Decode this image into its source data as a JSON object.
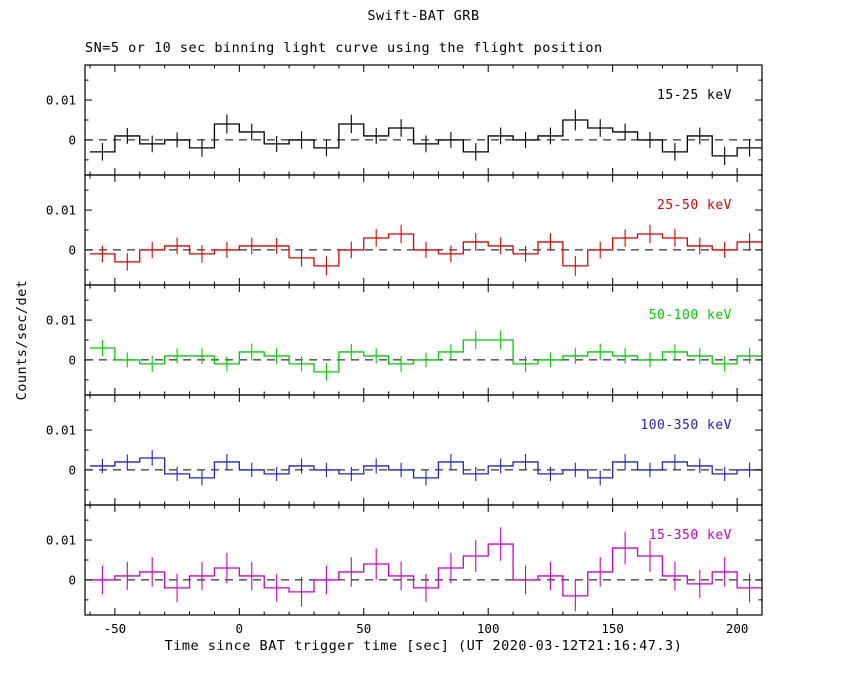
{
  "chart_data": {
    "type": "line",
    "style": "histogram-step light curve with vertical error bars per bin",
    "title": "Swift-BAT GRB",
    "subtitle": "SN=5 or 10 sec binning light curve using the flight position",
    "xlabel": "Time since BAT trigger time [sec] (UT 2020-03-12T21:16:47.3)",
    "ylabel": "Counts/sec/det",
    "binning_sec": "5 or 10",
    "xlim": [
      -62,
      210
    ],
    "ylim": [
      -0.0088,
      0.0188
    ],
    "x_major_ticks": [
      -50,
      0,
      50,
      100,
      150,
      200
    ],
    "x_minor_tick_step": 10,
    "y_major_ticks": [
      0,
      0.01
    ],
    "y_major_tick_labels": [
      "0",
      "0.01"
    ],
    "y_minor_ticks": [
      -0.005,
      0.005,
      0.015
    ],
    "zero_line": {
      "style": "dashed",
      "color": "#000000",
      "value": 0
    },
    "grid": false,
    "legend_position": "inside-top-right-per-panel",
    "bin_start": -60,
    "bin_width": 10,
    "x_bin_centers": [
      -55,
      -45,
      -35,
      -25,
      -15,
      -5,
      5,
      15,
      25,
      35,
      45,
      55,
      65,
      75,
      85,
      95,
      105,
      115,
      125,
      135,
      145,
      155,
      165,
      175,
      185,
      195,
      205
    ],
    "panels": [
      {
        "label": "15-25 keV",
        "color": "#000000",
        "values": [
          -0.003,
          0.001,
          -0.001,
          0.0,
          -0.002,
          0.004,
          0.002,
          -0.001,
          0.0,
          -0.002,
          0.004,
          0.001,
          0.003,
          -0.001,
          0.0,
          -0.003,
          0.001,
          0.0,
          0.001,
          0.005,
          0.003,
          0.002,
          0.0,
          -0.003,
          0.001,
          -0.004,
          -0.002
        ],
        "errors": [
          0.0022,
          0.002,
          0.0021,
          0.0019,
          0.0022,
          0.0024,
          0.0021,
          0.002,
          0.0022,
          0.0021,
          0.0023,
          0.002,
          0.0022,
          0.0021,
          0.002,
          0.0022,
          0.0021,
          0.002,
          0.0021,
          0.0026,
          0.0022,
          0.0021,
          0.002,
          0.0022,
          0.0021,
          0.0023,
          0.0022
        ]
      },
      {
        "label": "25-50 keV",
        "color": "#dd0000",
        "values": [
          -0.001,
          -0.003,
          0.0,
          0.001,
          -0.001,
          0.0,
          0.001,
          0.001,
          -0.002,
          -0.004,
          0.0,
          0.003,
          0.004,
          0.0,
          -0.001,
          0.002,
          0.001,
          -0.001,
          0.002,
          -0.004,
          0.0,
          0.003,
          0.004,
          0.003,
          0.001,
          0.0,
          0.002
        ],
        "errors": [
          0.0021,
          0.0022,
          0.002,
          0.0021,
          0.0022,
          0.002,
          0.0021,
          0.002,
          0.0022,
          0.0024,
          0.0021,
          0.0022,
          0.0023,
          0.002,
          0.0021,
          0.0022,
          0.0021,
          0.002,
          0.0022,
          0.0025,
          0.0021,
          0.0022,
          0.0023,
          0.0022,
          0.0021,
          0.002,
          0.0022
        ]
      },
      {
        "label": "50-100 keV",
        "color": "#00cc00",
        "values": [
          0.003,
          0.0,
          -0.001,
          0.001,
          0.001,
          -0.001,
          0.002,
          0.001,
          -0.001,
          -0.003,
          0.002,
          0.001,
          -0.001,
          0.0,
          0.002,
          0.005,
          0.005,
          -0.001,
          0.0,
          0.001,
          0.002,
          0.001,
          0.0,
          0.002,
          0.001,
          -0.001,
          0.001
        ],
        "errors": [
          0.002,
          0.0019,
          0.002,
          0.0019,
          0.002,
          0.0019,
          0.0021,
          0.002,
          0.0019,
          0.0022,
          0.002,
          0.0019,
          0.002,
          0.0019,
          0.002,
          0.0023,
          0.0023,
          0.002,
          0.0019,
          0.002,
          0.0021,
          0.002,
          0.0019,
          0.002,
          0.002,
          0.0019,
          0.002
        ]
      },
      {
        "label": "100-350 keV",
        "color": "#2222cc",
        "values": [
          0.001,
          0.002,
          0.003,
          -0.001,
          -0.002,
          0.002,
          0.0,
          -0.001,
          0.001,
          0.0,
          -0.001,
          0.001,
          0.0,
          -0.002,
          0.002,
          -0.001,
          0.001,
          0.002,
          -0.001,
          0.0,
          -0.002,
          0.002,
          0.0,
          0.002,
          0.001,
          -0.001,
          0.0
        ],
        "errors": [
          0.0018,
          0.0019,
          0.002,
          0.0018,
          0.0019,
          0.002,
          0.0018,
          0.0018,
          0.0019,
          0.0018,
          0.0018,
          0.0019,
          0.0018,
          0.0019,
          0.002,
          0.0018,
          0.0019,
          0.002,
          0.0018,
          0.0018,
          0.0019,
          0.002,
          0.0018,
          0.0019,
          0.0018,
          0.0018,
          0.0019
        ]
      },
      {
        "label": "15-350 keV",
        "color": "#cc00cc",
        "values": [
          0.0,
          0.001,
          0.002,
          -0.002,
          0.001,
          0.003,
          0.001,
          -0.002,
          -0.003,
          0.0,
          0.002,
          0.004,
          0.001,
          -0.002,
          0.003,
          0.006,
          0.009,
          0.0,
          0.001,
          -0.004,
          0.002,
          0.008,
          0.006,
          0.001,
          -0.001,
          0.002,
          -0.002
        ],
        "errors": [
          0.0036,
          0.0035,
          0.0037,
          0.0036,
          0.0035,
          0.0038,
          0.0036,
          0.0035,
          0.0037,
          0.0036,
          0.0037,
          0.0039,
          0.0036,
          0.0035,
          0.0038,
          0.004,
          0.0042,
          0.0036,
          0.0036,
          0.0039,
          0.0037,
          0.0041,
          0.004,
          0.0036,
          0.0035,
          0.0037,
          0.0036
        ]
      }
    ]
  }
}
